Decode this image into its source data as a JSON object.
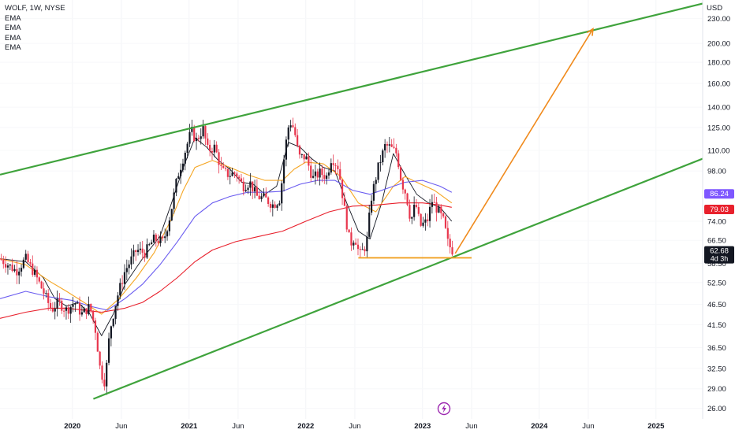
{
  "chart_data": {
    "type": "candlestick",
    "symbol_label": "WOLF, 1W, NYSE",
    "indicators": [
      "EMA",
      "EMA",
      "EMA",
      "EMA"
    ],
    "currency": "USD",
    "y_scale": "log",
    "ylim": [
      24.5,
      255
    ],
    "y_ticks": [
      "230.00",
      "200.00",
      "180.00",
      "160.00",
      "140.00",
      "125.00",
      "110.00",
      "98.00",
      "86.24",
      "79.03",
      "74.00",
      "66.50",
      "62.68",
      "58.50",
      "52.50",
      "46.50",
      "41.50",
      "36.50",
      "32.50",
      "29.00",
      "26.00"
    ],
    "x_labels": [
      {
        "label": "2020",
        "t": 2020.0,
        "bold": true
      },
      {
        "label": "Jun",
        "t": 2020.42,
        "bold": false
      },
      {
        "label": "2021",
        "t": 2021.0,
        "bold": true
      },
      {
        "label": "Jun",
        "t": 2021.42,
        "bold": false
      },
      {
        "label": "2022",
        "t": 2022.0,
        "bold": true
      },
      {
        "label": "Jun",
        "t": 2022.42,
        "bold": false
      },
      {
        "label": "2023",
        "t": 2023.0,
        "bold": true
      },
      {
        "label": "Jun",
        "t": 2023.42,
        "bold": false
      },
      {
        "label": "2024",
        "t": 2024.0,
        "bold": true
      },
      {
        "label": "Jun",
        "t": 2024.42,
        "bold": false
      },
      {
        "label": "2025",
        "t": 2025.0,
        "bold": true
      }
    ],
    "price_badges": [
      {
        "label": "86.24",
        "value": 86.24,
        "color": "#7e57ff"
      },
      {
        "label": "79.03",
        "value": 79.03,
        "color": "#e8202c"
      },
      {
        "label": "62.68",
        "value": 62.68,
        "color": "#131722",
        "sub": "4d 3h"
      }
    ],
    "colors": {
      "up": "#131722",
      "down": "#e8364d",
      "trend": "#3fa33c",
      "support": "#f0a020",
      "arrow": "#f08a1c"
    },
    "trendlines": [
      {
        "name": "upper-channel",
        "from": {
          "t": 2019.38,
          "v": 96
        },
        "to": {
          "t": 2025.4,
          "v": 250
        }
      },
      {
        "name": "lower-channel",
        "from": {
          "t": 2020.18,
          "v": 27.4
        },
        "to": {
          "t": 2025.4,
          "v": 105
        }
      }
    ],
    "support_line": {
      "from": {
        "t": 2022.45,
        "v": 60.3
      },
      "to": {
        "t": 2023.42,
        "v": 60.3
      }
    },
    "projection_arrow": {
      "from": {
        "t": 2023.28,
        "v": 61.8
      },
      "to": {
        "t": 2024.46,
        "v": 217
      }
    },
    "ema_lines": [
      {
        "color": "#131722",
        "points": [
          [
            2019.38,
            60
          ],
          [
            2019.6,
            59
          ],
          [
            2019.75,
            54
          ],
          [
            2019.85,
            48
          ],
          [
            2019.95,
            46
          ],
          [
            2020.05,
            47
          ],
          [
            2020.15,
            44
          ],
          [
            2020.25,
            39
          ],
          [
            2020.35,
            44
          ],
          [
            2020.45,
            52
          ],
          [
            2020.6,
            60
          ],
          [
            2020.75,
            68
          ],
          [
            2020.85,
            82
          ],
          [
            2020.95,
            100
          ],
          [
            2021.05,
            118
          ],
          [
            2021.15,
            112
          ],
          [
            2021.25,
            104
          ],
          [
            2021.35,
            99
          ],
          [
            2021.45,
            92
          ],
          [
            2021.55,
            91
          ],
          [
            2021.65,
            86
          ],
          [
            2021.75,
            90
          ],
          [
            2021.85,
            115
          ],
          [
            2021.95,
            112
          ],
          [
            2022.05,
            105
          ],
          [
            2022.15,
            100
          ],
          [
            2022.25,
            98
          ],
          [
            2022.35,
            82
          ],
          [
            2022.45,
            70
          ],
          [
            2022.55,
            67
          ],
          [
            2022.65,
            82
          ],
          [
            2022.75,
            108
          ],
          [
            2022.85,
            96
          ],
          [
            2022.95,
            86
          ],
          [
            2023.05,
            82
          ],
          [
            2023.15,
            80
          ],
          [
            2023.25,
            74
          ]
        ]
      },
      {
        "color": "#f5a623",
        "points": [
          [
            2019.38,
            60
          ],
          [
            2019.6,
            58
          ],
          [
            2019.8,
            53
          ],
          [
            2019.95,
            50
          ],
          [
            2020.1,
            47
          ],
          [
            2020.25,
            44
          ],
          [
            2020.4,
            48
          ],
          [
            2020.55,
            54
          ],
          [
            2020.7,
            62
          ],
          [
            2020.85,
            75
          ],
          [
            2020.95,
            88
          ],
          [
            2021.05,
            100
          ],
          [
            2021.2,
            104
          ],
          [
            2021.35,
            100
          ],
          [
            2021.5,
            96
          ],
          [
            2021.65,
            93
          ],
          [
            2021.8,
            93
          ],
          [
            2021.9,
            99
          ],
          [
            2022.0,
            103
          ],
          [
            2022.15,
            102
          ],
          [
            2022.3,
            95
          ],
          [
            2022.45,
            82
          ],
          [
            2022.6,
            78
          ],
          [
            2022.75,
            90
          ],
          [
            2022.85,
            95
          ],
          [
            2022.95,
            92
          ],
          [
            2023.1,
            88
          ],
          [
            2023.25,
            82
          ]
        ]
      },
      {
        "color": "#6a5cf0",
        "points": [
          [
            2019.38,
            48
          ],
          [
            2019.6,
            50
          ],
          [
            2019.8,
            48.5
          ],
          [
            2020.0,
            47.5
          ],
          [
            2020.15,
            46
          ],
          [
            2020.3,
            45
          ],
          [
            2020.45,
            48
          ],
          [
            2020.6,
            52
          ],
          [
            2020.75,
            58
          ],
          [
            2020.9,
            66
          ],
          [
            2021.05,
            76
          ],
          [
            2021.2,
            82
          ],
          [
            2021.35,
            85
          ],
          [
            2021.5,
            87
          ],
          [
            2021.65,
            87
          ],
          [
            2021.8,
            87.5
          ],
          [
            2021.95,
            91
          ],
          [
            2022.1,
            93
          ],
          [
            2022.25,
            93
          ],
          [
            2022.4,
            88
          ],
          [
            2022.55,
            86
          ],
          [
            2022.7,
            89
          ],
          [
            2022.85,
            92
          ],
          [
            2023.0,
            93
          ],
          [
            2023.15,
            90
          ],
          [
            2023.25,
            87
          ]
        ]
      },
      {
        "color": "#e8202c",
        "points": [
          [
            2019.38,
            43
          ],
          [
            2019.6,
            44.5
          ],
          [
            2019.8,
            45.5
          ],
          [
            2019.95,
            45.5
          ],
          [
            2020.1,
            45
          ],
          [
            2020.25,
            44.5
          ],
          [
            2020.45,
            45.5
          ],
          [
            2020.6,
            47
          ],
          [
            2020.75,
            50
          ],
          [
            2020.9,
            54
          ],
          [
            2021.05,
            59
          ],
          [
            2021.2,
            63
          ],
          [
            2021.4,
            66
          ],
          [
            2021.6,
            68
          ],
          [
            2021.8,
            70
          ],
          [
            2022.0,
            74
          ],
          [
            2022.2,
            78
          ],
          [
            2022.4,
            80.5
          ],
          [
            2022.6,
            81
          ],
          [
            2022.8,
            82
          ],
          [
            2023.0,
            82
          ],
          [
            2023.15,
            81
          ],
          [
            2023.25,
            80
          ]
        ]
      }
    ],
    "price_path": [
      [
        2019.38,
        60
      ],
      [
        2019.45,
        58
      ],
      [
        2019.52,
        56
      ],
      [
        2019.6,
        60
      ],
      [
        2019.68,
        55
      ],
      [
        2019.75,
        50
      ],
      [
        2019.82,
        45
      ],
      [
        2019.88,
        47
      ],
      [
        2019.95,
        45
      ],
      [
        2020.02,
        47
      ],
      [
        2020.08,
        44
      ],
      [
        2020.15,
        46
      ],
      [
        2020.2,
        40
      ],
      [
        2020.24,
        32
      ],
      [
        2020.28,
        30
      ],
      [
        2020.32,
        40
      ],
      [
        2020.38,
        48
      ],
      [
        2020.45,
        56
      ],
      [
        2020.55,
        63
      ],
      [
        2020.62,
        62
      ],
      [
        2020.7,
        67
      ],
      [
        2020.78,
        66
      ],
      [
        2020.84,
        77
      ],
      [
        2020.9,
        95
      ],
      [
        2020.96,
        108
      ],
      [
        2021.02,
        123
      ],
      [
        2021.06,
        116
      ],
      [
        2021.12,
        124
      ],
      [
        2021.16,
        110
      ],
      [
        2021.22,
        112
      ],
      [
        2021.28,
        98
      ],
      [
        2021.34,
        96
      ],
      [
        2021.4,
        97
      ],
      [
        2021.46,
        90
      ],
      [
        2021.52,
        92
      ],
      [
        2021.58,
        85
      ],
      [
        2021.65,
        84
      ],
      [
        2021.72,
        81
      ],
      [
        2021.78,
        84
      ],
      [
        2021.82,
        110
      ],
      [
        2021.86,
        130
      ],
      [
        2021.9,
        124
      ],
      [
        2021.94,
        106
      ],
      [
        2022.0,
        106
      ],
      [
        2022.06,
        94
      ],
      [
        2022.12,
        97
      ],
      [
        2022.18,
        95
      ],
      [
        2022.22,
        106
      ],
      [
        2022.28,
        100
      ],
      [
        2022.34,
        76
      ],
      [
        2022.38,
        65
      ],
      [
        2022.42,
        68
      ],
      [
        2022.46,
        61
      ],
      [
        2022.52,
        65
      ],
      [
        2022.56,
        84
      ],
      [
        2022.62,
        100
      ],
      [
        2022.68,
        113
      ],
      [
        2022.72,
        112
      ],
      [
        2022.78,
        108
      ],
      [
        2022.82,
        92
      ],
      [
        2022.86,
        86
      ],
      [
        2022.9,
        74
      ],
      [
        2022.94,
        82
      ],
      [
        2022.98,
        72
      ],
      [
        2023.04,
        74
      ],
      [
        2023.08,
        83
      ],
      [
        2023.14,
        78
      ],
      [
        2023.18,
        74
      ],
      [
        2023.22,
        65
      ],
      [
        2023.26,
        62.68
      ]
    ]
  }
}
